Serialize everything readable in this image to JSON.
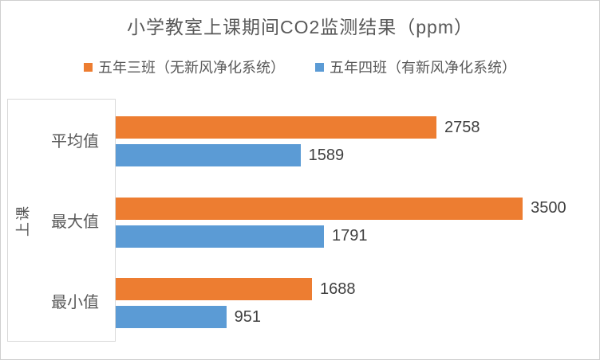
{
  "title": "小学教室上课期间CO2监测结果（ppm）",
  "chart_data": {
    "type": "bar",
    "orientation": "horizontal",
    "title": "小学教室上课期间CO2监测结果（ppm）",
    "categories": [
      "平均值",
      "最大值",
      "最小值"
    ],
    "series": [
      {
        "name": "五年三班（无新风净化系统）",
        "color": "#ED7D31",
        "values": [
          2758,
          3500,
          1688
        ]
      },
      {
        "name": "五年四班（有新风净化系统）",
        "color": "#5B9BD5",
        "values": [
          1589,
          1791,
          951
        ]
      }
    ],
    "ylabel": "上课",
    "xlabel": "",
    "xlim": [
      0,
      4000
    ],
    "grid": false,
    "legend_position": "top",
    "data_labels": true
  },
  "colors": {
    "series1": "#ED7D31",
    "series2": "#5B9BD5",
    "text": "#595959",
    "data_label_text": "#404040",
    "border": "#D9D9D9",
    "background": "#FFFFFF"
  }
}
